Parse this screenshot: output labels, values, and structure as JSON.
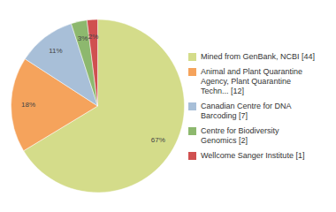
{
  "chart_data": {
    "type": "pie",
    "categories": [
      "Mined from GenBank, NCBI [44]",
      "Animal and Plant Quarantine\nAgency, Plant Quarantine\nTechn... [12]",
      "Canadian Centre for DNA\nBarcoding [7]",
      "Centre for Biodiversity\nGenomics [2]",
      "Wellcome Sanger Institute [1]"
    ],
    "values": [
      67,
      18,
      11,
      3,
      2
    ],
    "value_labels": [
      "67%",
      "18%",
      "11%",
      "3%",
      "2%"
    ],
    "colors": [
      "#d4dc8a",
      "#f5a35c",
      "#a8bfd8",
      "#8db86e",
      "#d05050"
    ],
    "data_labels": true,
    "legend": "right"
  }
}
